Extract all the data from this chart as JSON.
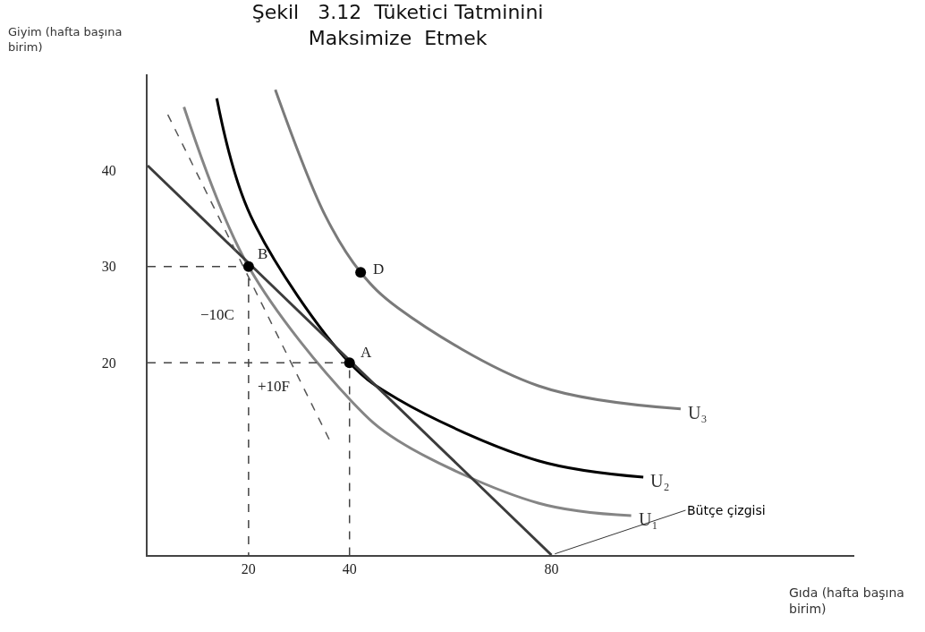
{
  "chart_data": {
    "type": "line",
    "title": "Şekil   3.12  Tüketici Tatminini\nMaksimize  Etmek",
    "xlabel": "Gıda (hafta başına birim)",
    "ylabel": "Giyim (hafta başına birim)",
    "xlim": [
      0,
      140
    ],
    "ylim": [
      0,
      50
    ],
    "xticks": [
      20,
      40,
      80
    ],
    "yticks": [
      20,
      30,
      40
    ],
    "legend": false,
    "line_style": "solid",
    "marker": "none",
    "series": [
      {
        "name": "U₃",
        "color": "#7a7a7a",
        "x": [
          25.3,
          35.2,
          42.2,
          49.6,
          77.4,
          105.6
        ],
        "values": [
          48.4,
          35.3,
          29.4,
          25.7,
          17.6,
          15.2
        ]
      },
      {
        "name": "U₂",
        "color": "#000000",
        "x": [
          13.7,
          20.4,
          40,
          49.6,
          77.4,
          98.2
        ],
        "values": [
          47.5,
          35.3,
          20,
          16.2,
          9.8,
          8.1
        ]
      },
      {
        "name": "U₁",
        "color": "#858585",
        "x": [
          7.2,
          20,
          40.4,
          49.6,
          77.4,
          95.8
        ],
        "values": [
          46.6,
          30,
          16,
          11.9,
          5.4,
          4.1
        ]
      },
      {
        "color": "#3c3c3c",
        "x": [
          0,
          80
        ],
        "values": [
          40.5,
          0
        ]
      },
      {
        "color": "#555555",
        "line_style": "dashed",
        "x": [
          4,
          36
        ],
        "values": [
          45.8,
          12
        ]
      },
      {
        "color": "#444444",
        "line_style": "dashed",
        "x": [
          0,
          20,
          20
        ],
        "values": [
          30,
          30,
          0
        ]
      },
      {
        "color": "#444444",
        "line_style": "dashed",
        "x": [
          0,
          40,
          40
        ],
        "values": [
          20,
          20,
          0
        ]
      },
      {
        "type": "scatter",
        "marker": "circle",
        "color": "#000000",
        "x": [
          20,
          40,
          42.2
        ],
        "values": [
          30,
          20,
          29.4
        ]
      }
    ],
    "annotations": [
      {
        "text": "B",
        "x": 20,
        "y": 30
      },
      {
        "text": "A",
        "x": 40,
        "y": 20
      },
      {
        "text": "D",
        "x": 42.2,
        "y": 29.4
      },
      {
        "text": "−10C",
        "x": 20,
        "y": 25
      },
      {
        "text": "+10F",
        "x": 25,
        "y": 20
      },
      {
        "text": "Bütçe çizgisi",
        "x": 80,
        "y": 0
      }
    ]
  }
}
